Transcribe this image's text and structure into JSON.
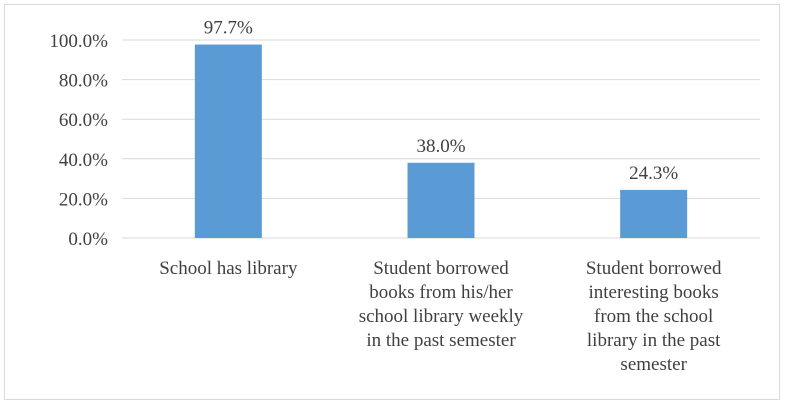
{
  "chart_data": {
    "type": "bar",
    "categories": [
      [
        "School has library"
      ],
      [
        "Student borrowed",
        "books from his/her",
        "school library weekly",
        "in the past semester"
      ],
      [
        "Student borrowed",
        "interesting books",
        "from the school",
        "library in the past",
        "semester"
      ]
    ],
    "values": [
      97.7,
      38.0,
      24.3
    ],
    "data_labels": [
      "97.7%",
      "38.0%",
      "24.3%"
    ],
    "ylim": [
      0,
      100
    ],
    "yticks": [
      0,
      20,
      40,
      60,
      80,
      100
    ],
    "ytick_labels": [
      "0.0%",
      "20.0%",
      "40.0%",
      "60.0%",
      "80.0%",
      "100.0%"
    ],
    "grid": true,
    "bar_color": "#5b9bd5",
    "grid_color": "#d9d9d9"
  }
}
